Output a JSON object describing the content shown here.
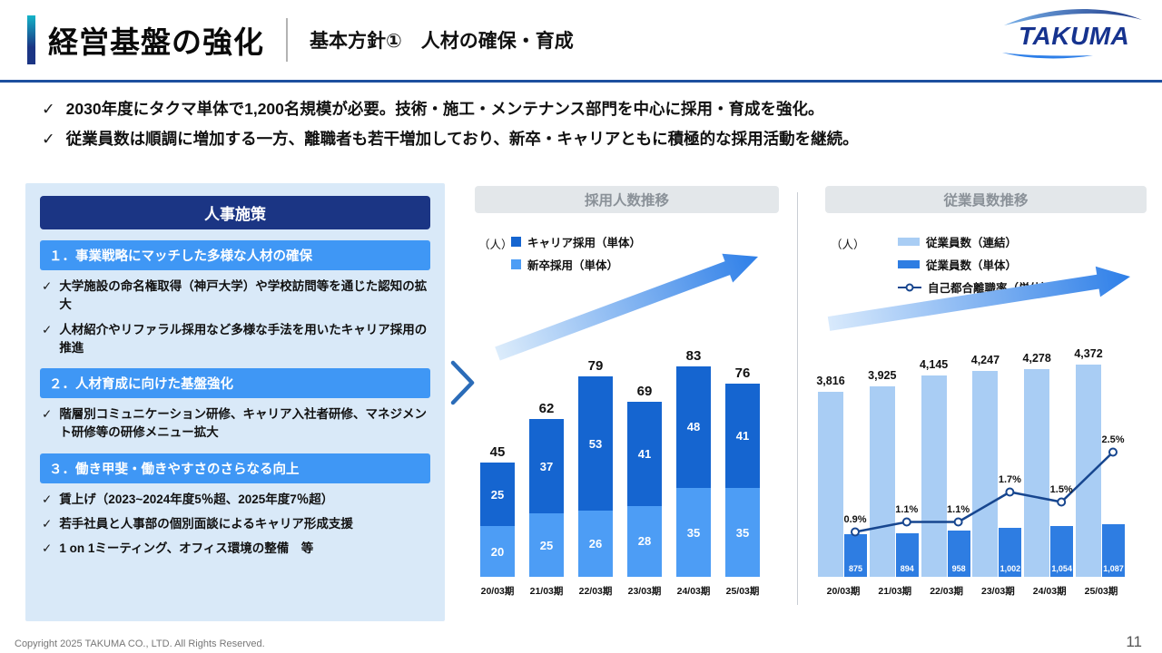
{
  "header": {
    "title": "経営基盤の強化",
    "subtitle": "基本方針①　人材の確保・育成",
    "logo": "TAKUMA"
  },
  "summary": {
    "bullets": [
      "2030年度にタクマ単体で1,200名規模が必要。技術・施工・メンテナンス部門を中心に採用・育成を強化。",
      "従業員数は順調に増加する一方、離職者も若干増加しており、新卒・キャリアともに積極的な採用活動を継続。"
    ]
  },
  "hr_panel": {
    "title": "人事施策",
    "sections": [
      {
        "heading": "１．事業戦略にマッチした多様な人材の確保",
        "bullets": [
          "大学施設の命名権取得（神戸大学）や学校訪問等を通じた認知の拡大",
          "人材紹介やリファラル採用など多様な手法を用いたキャリア採用の推進"
        ]
      },
      {
        "heading": "２．人材育成に向けた基盤強化",
        "bullets": [
          "階層別コミュニケーション研修、キャリア入社者研修、マネジメント研修等の研修メニュー拡大"
        ]
      },
      {
        "heading": "３．働き甲斐・働きやすさのさらなる向上",
        "bullets": [
          "賃上げ（2023~2024年度5％超、2025年度7％超）",
          "若手社員と人事部の個別面談によるキャリア形成支援",
          "1 on 1ミーティング、オフィス環境の整備　等"
        ]
      }
    ]
  },
  "chart_data": [
    {
      "type": "bar",
      "stacked": true,
      "title": "採用人数推移",
      "unit": "（人）",
      "categories": [
        "20/03期",
        "21/03期",
        "22/03期",
        "23/03期",
        "24/03期",
        "25/03期"
      ],
      "series": [
        {
          "name": "キャリア採用（単体）",
          "color": "#1565d0",
          "values": [
            25,
            37,
            53,
            41,
            48,
            41
          ]
        },
        {
          "name": "新卒採用（単体）",
          "color": "#4d9df5",
          "values": [
            20,
            25,
            26,
            28,
            35,
            35
          ]
        }
      ],
      "totals": [
        45,
        62,
        79,
        69,
        83,
        76
      ],
      "ylim": [
        0,
        90
      ],
      "legend_position": "top-left",
      "grid": false
    },
    {
      "type": "bar",
      "stacked": false,
      "title": "従業員数推移",
      "unit": "（人）",
      "categories": [
        "20/03期",
        "21/03期",
        "22/03期",
        "23/03期",
        "24/03期",
        "25/03期"
      ],
      "series": [
        {
          "name": "従業員数（連結）",
          "color": "#a9cdf4",
          "values": [
            3816,
            3925,
            4145,
            4247,
            4278,
            4372
          ],
          "labels": [
            "3,816",
            "3,925",
            "4,145",
            "4,247",
            "4,278",
            "4,372"
          ]
        },
        {
          "name": "従業員数（単体）",
          "color": "#2e7de2",
          "values": [
            875,
            894,
            958,
            1002,
            1054,
            1087
          ],
          "labels": [
            "875",
            "894",
            "958",
            "1,002",
            "1,054",
            "1,087"
          ]
        }
      ],
      "line": {
        "name": "自己都合離職率（単体）",
        "color": "#17468f",
        "values": [
          0.9,
          1.1,
          1.1,
          1.7,
          1.5,
          2.5
        ],
        "labels": [
          "0.9%",
          "1.1%",
          "1.1%",
          "1.7%",
          "1.5%",
          "2.5%"
        ]
      },
      "ylim": [
        0,
        4500
      ],
      "line_ylim": [
        0,
        3
      ],
      "legend_position": "top-left",
      "grid": false
    }
  ],
  "footer": {
    "copyright": "Copyright  2025 TAKUMA CO., LTD.  All Rights Reserved.",
    "page": "11"
  }
}
